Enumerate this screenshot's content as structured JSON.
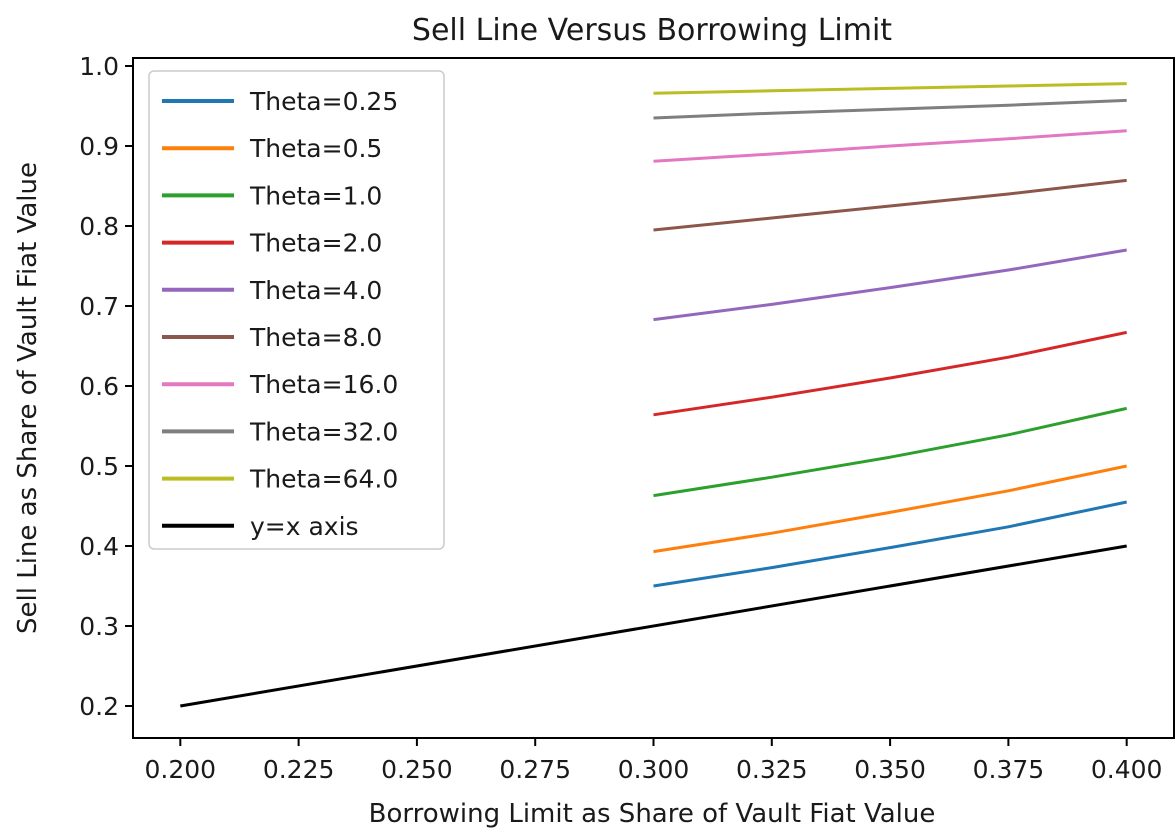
{
  "chart_data": {
    "type": "line",
    "title": "Sell Line Versus Borrowing Limit",
    "xlabel": "Borrowing Limit as Share of Vault Fiat Value",
    "ylabel": "Sell Line as Share of Vault Fiat Value",
    "xlim": [
      0.19,
      0.41
    ],
    "ylim": [
      0.16,
      1.01
    ],
    "x_ticks": [
      "0.200",
      "0.225",
      "0.250",
      "0.275",
      "0.300",
      "0.325",
      "0.350",
      "0.375",
      "0.400"
    ],
    "y_ticks": [
      "0.2",
      "0.3",
      "0.4",
      "0.5",
      "0.6",
      "0.7",
      "0.8",
      "0.9",
      "1.0"
    ],
    "legend_position": "upper-left",
    "grid": false,
    "series": [
      {
        "name": "Theta=0.25",
        "color": "#1f77b4",
        "x": [
          0.3,
          0.325,
          0.35,
          0.375,
          0.4
        ],
        "y": [
          0.35,
          0.373,
          0.398,
          0.424,
          0.455
        ]
      },
      {
        "name": "Theta=0.5",
        "color": "#ff7f0e",
        "x": [
          0.3,
          0.325,
          0.35,
          0.375,
          0.4
        ],
        "y": [
          0.393,
          0.416,
          0.442,
          0.469,
          0.5
        ]
      },
      {
        "name": "Theta=1.0",
        "color": "#2ca02c",
        "x": [
          0.3,
          0.325,
          0.35,
          0.375,
          0.4
        ],
        "y": [
          0.463,
          0.486,
          0.511,
          0.539,
          0.572
        ]
      },
      {
        "name": "Theta=2.0",
        "color": "#d62728",
        "x": [
          0.3,
          0.325,
          0.35,
          0.375,
          0.4
        ],
        "y": [
          0.564,
          0.586,
          0.61,
          0.636,
          0.667
        ]
      },
      {
        "name": "Theta=4.0",
        "color": "#9467bd",
        "x": [
          0.3,
          0.325,
          0.35,
          0.375,
          0.4
        ],
        "y": [
          0.683,
          0.702,
          0.723,
          0.745,
          0.77
        ]
      },
      {
        "name": "Theta=8.0",
        "color": "#8c564b",
        "x": [
          0.3,
          0.325,
          0.35,
          0.375,
          0.4
        ],
        "y": [
          0.795,
          0.81,
          0.825,
          0.84,
          0.857
        ]
      },
      {
        "name": "Theta=16.0",
        "color": "#e377c2",
        "x": [
          0.3,
          0.325,
          0.35,
          0.375,
          0.4
        ],
        "y": [
          0.881,
          0.89,
          0.9,
          0.909,
          0.919
        ]
      },
      {
        "name": "Theta=32.0",
        "color": "#7f7f7f",
        "x": [
          0.3,
          0.325,
          0.35,
          0.375,
          0.4
        ],
        "y": [
          0.935,
          0.941,
          0.946,
          0.951,
          0.957
        ]
      },
      {
        "name": "Theta=64.0",
        "color": "#bcbd22",
        "x": [
          0.3,
          0.325,
          0.35,
          0.375,
          0.4
        ],
        "y": [
          0.966,
          0.969,
          0.972,
          0.975,
          0.978
        ]
      },
      {
        "name": "y=x axis",
        "color": "#000000",
        "x": [
          0.2,
          0.4
        ],
        "y": [
          0.2,
          0.4
        ]
      }
    ]
  }
}
